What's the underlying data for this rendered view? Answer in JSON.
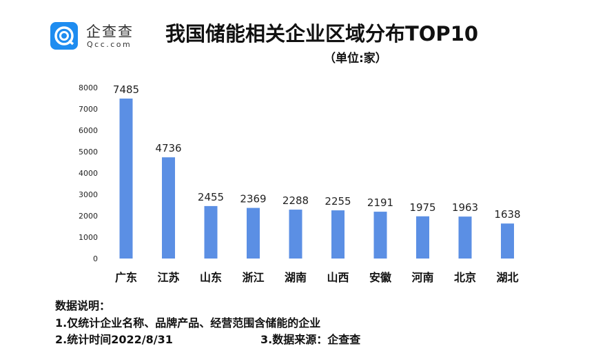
{
  "logo": {
    "name": "企查查",
    "domain": "Qcc.com",
    "color": "#1e8cf0"
  },
  "chart_data": {
    "type": "bar",
    "title": "我国储能相关企业区域分布TOP10",
    "subtitle": "（单位:家）",
    "categories": [
      "广东",
      "江苏",
      "山东",
      "浙江",
      "湖南",
      "山西",
      "安徽",
      "河南",
      "北京",
      "湖北"
    ],
    "values": [
      7485,
      4736,
      2455,
      2369,
      2288,
      2255,
      2191,
      1975,
      1963,
      1638
    ],
    "ylim": [
      0,
      8000
    ],
    "yticks": [
      0,
      1000,
      2000,
      3000,
      4000,
      5000,
      6000,
      7000,
      8000
    ],
    "grid": false,
    "bar_color": "#5b8fe4"
  },
  "notes": {
    "heading": "数据说明：",
    "line1": "1.仅统计企业名称、品牌产品、经营范围含储能的企业",
    "line2": "2.统计时间2022/8/31",
    "source": "3.数据来源：企查查"
  }
}
